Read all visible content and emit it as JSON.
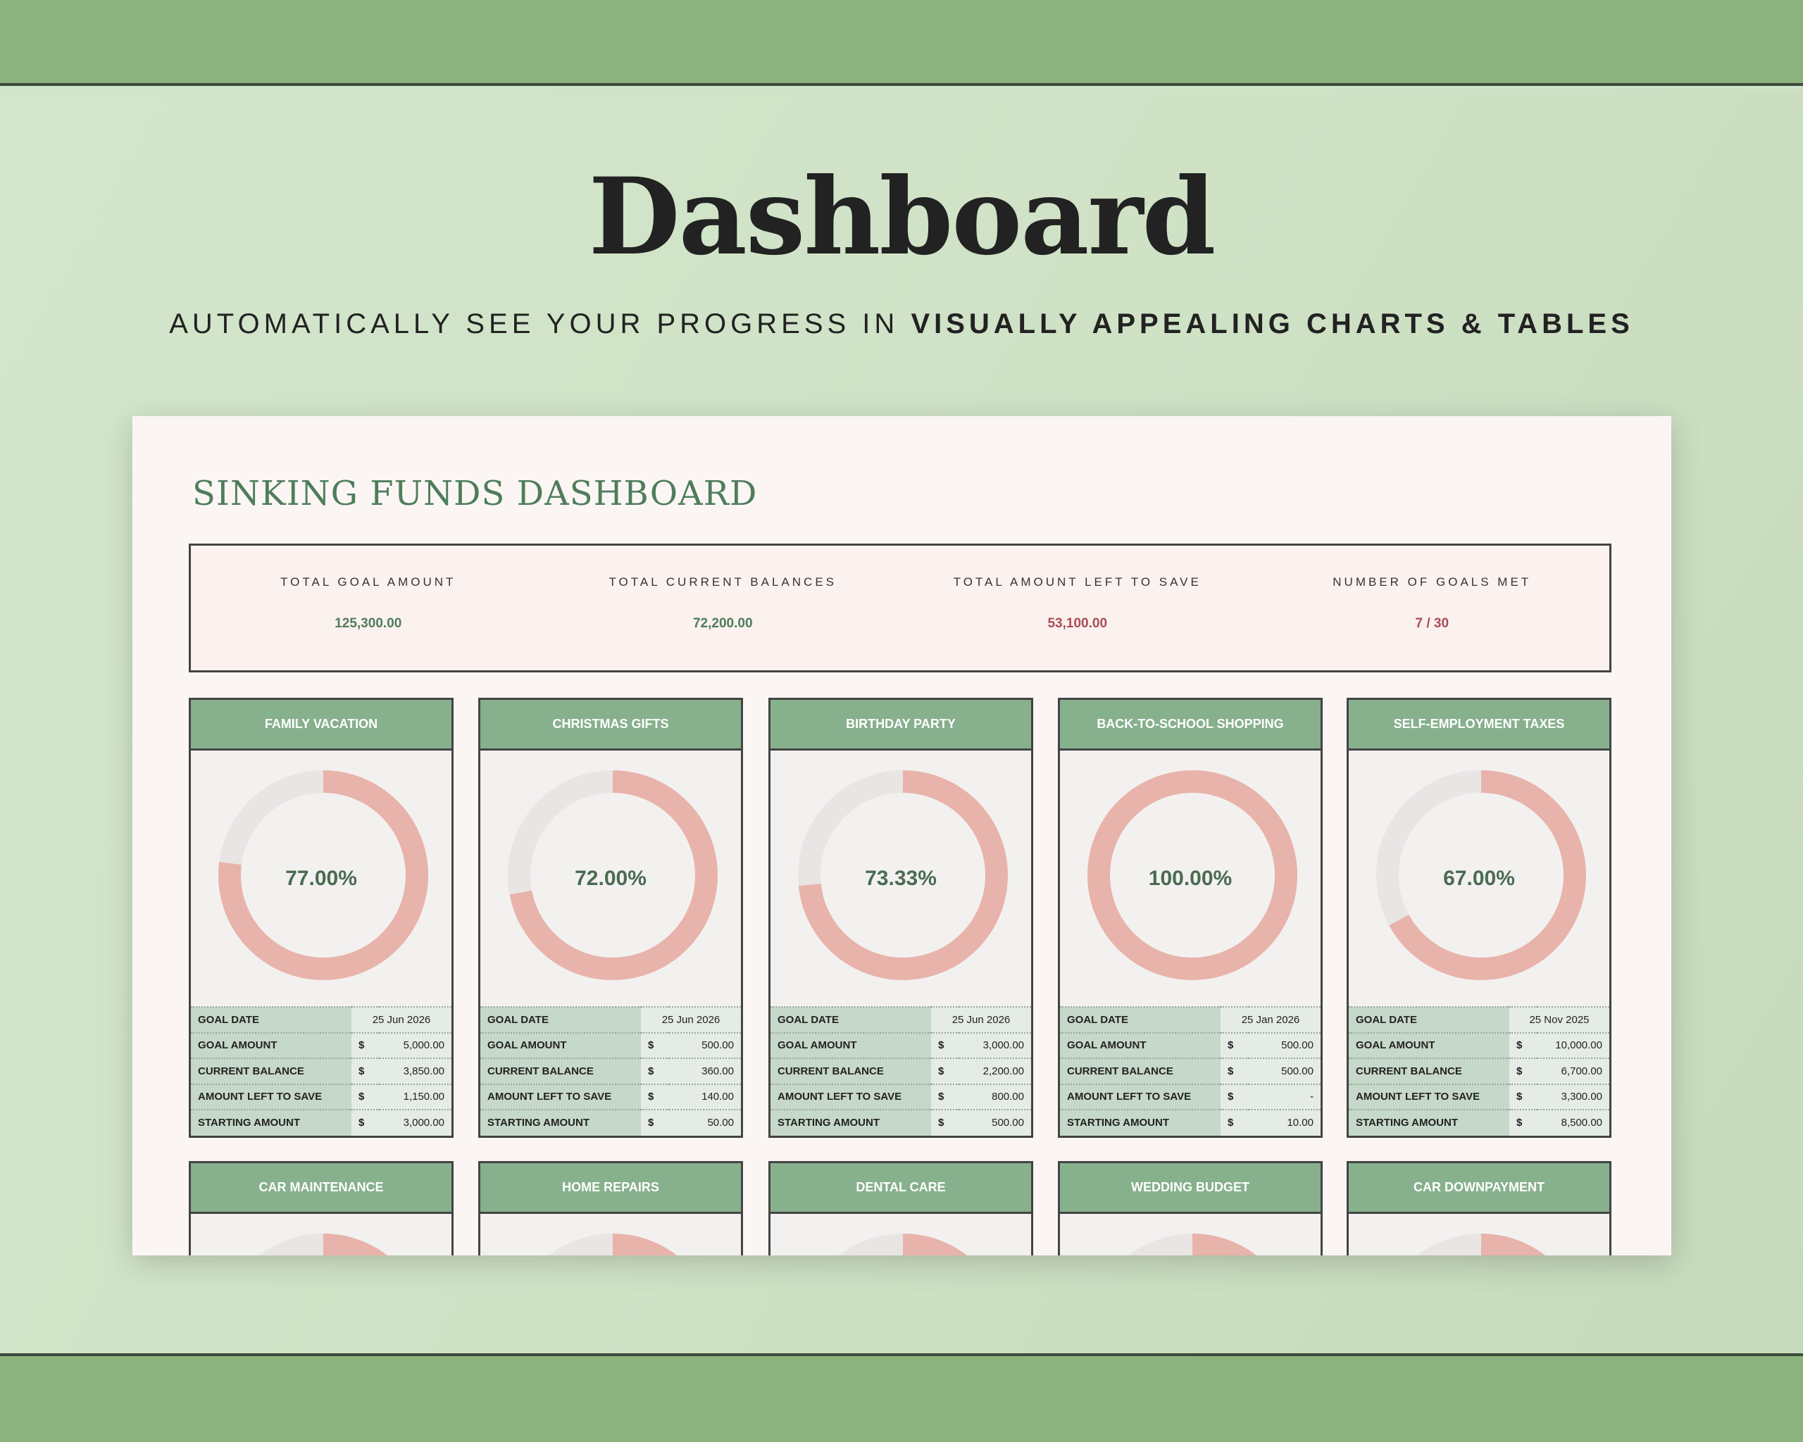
{
  "header": {
    "title": "Dashboard",
    "subtitle_plain": "AUTOMATICALLY SEE YOUR PROGRESS IN",
    "subtitle_bold": "VISUALLY APPEALING CHARTS & TABLES"
  },
  "dashboard": {
    "title": "SINKING FUNDS DASHBOARD",
    "summary": [
      {
        "label": "TOTAL GOAL AMOUNT",
        "value": "125,300.00",
        "color": "#4f7d5b"
      },
      {
        "label": "TOTAL CURRENT BALANCES",
        "value": "72,200.00",
        "color": "#4f7d5b"
      },
      {
        "label": "TOTAL AMOUNT LEFT TO SAVE",
        "value": "53,100.00",
        "color": "#a84d55"
      },
      {
        "label": "NUMBER OF GOALS MET",
        "value": "7 / 30",
        "color": "#a84d55"
      }
    ],
    "row_labels": {
      "goal_date": "GOAL DATE",
      "goal_amount": "GOAL AMOUNT",
      "current_balance": "CURRENT BALANCE",
      "left": "AMOUNT LEFT TO SAVE",
      "starting": "STARTING AMOUNT",
      "currency": "$"
    },
    "colors": {
      "progress": "#e8b3aa",
      "track": "#e8e5e4",
      "header": "#87b08d"
    },
    "funds": [
      {
        "name": "FAMILY VACATION",
        "percent_label": "77.00%",
        "progress": 0.77,
        "goal_date": "25 Jun 2026",
        "goal_amount": "5,000.00",
        "current_balance": "3,850.00",
        "left": "1,150.00",
        "starting": "3,000.00"
      },
      {
        "name": "CHRISTMAS GIFTS",
        "percent_label": "72.00%",
        "progress": 0.72,
        "goal_date": "25 Jun 2026",
        "goal_amount": "500.00",
        "current_balance": "360.00",
        "left": "140.00",
        "starting": "50.00"
      },
      {
        "name": "BIRTHDAY PARTY",
        "percent_label": "73.33%",
        "progress": 0.7333,
        "goal_date": "25 Jun 2026",
        "goal_amount": "3,000.00",
        "current_balance": "2,200.00",
        "left": "800.00",
        "starting": "500.00"
      },
      {
        "name": "BACK-TO-SCHOOL SHOPPING",
        "percent_label": "100.00%",
        "progress": 1.0,
        "goal_date": "25 Jan 2026",
        "goal_amount": "500.00",
        "current_balance": "500.00",
        "left": "-",
        "starting": "10.00"
      },
      {
        "name": "SELF-EMPLOYMENT TAXES",
        "percent_label": "67.00%",
        "progress": 0.67,
        "goal_date": "25 Nov 2025",
        "goal_amount": "10,000.00",
        "current_balance": "6,700.00",
        "left": "3,300.00",
        "starting": "8,500.00"
      }
    ],
    "funds_row2": [
      {
        "name": "CAR MAINTENANCE"
      },
      {
        "name": "HOME REPAIRS"
      },
      {
        "name": "DENTAL CARE"
      },
      {
        "name": "WEDDING BUDGET"
      },
      {
        "name": "CAR DOWNPAYMENT"
      }
    ]
  }
}
